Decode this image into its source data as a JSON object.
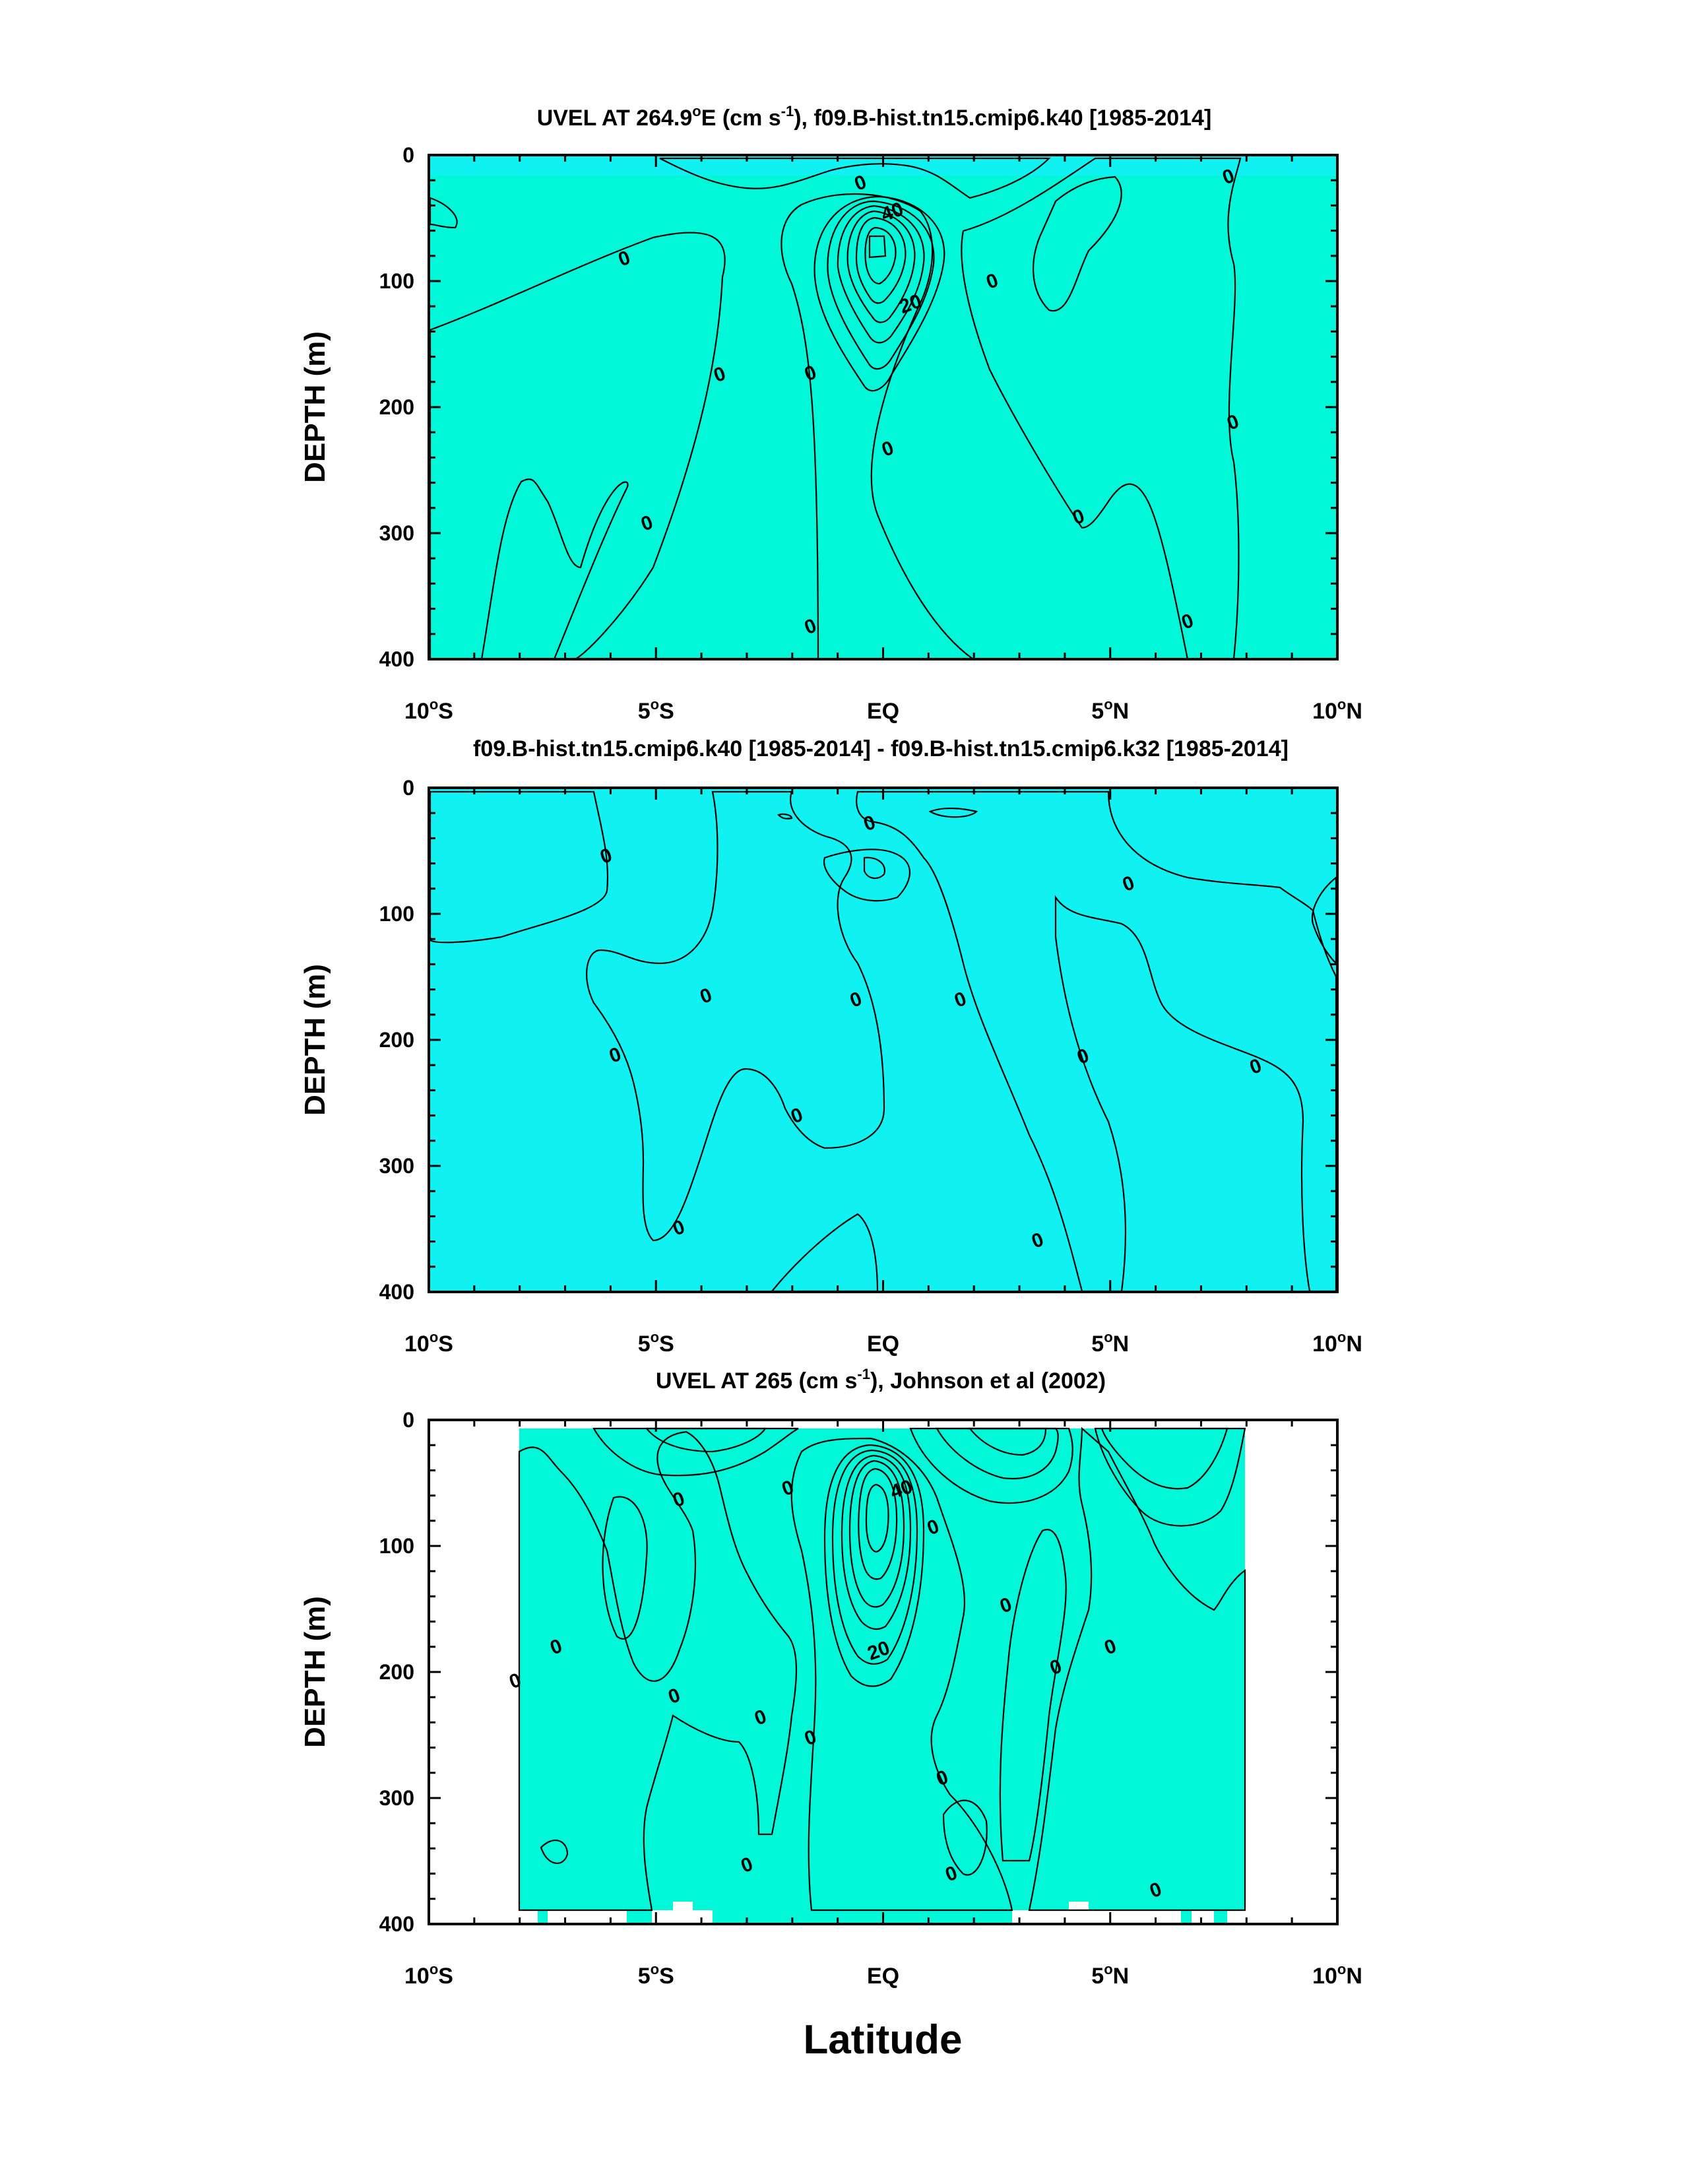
{
  "figure": {
    "x_axis_label": "Latitude"
  },
  "palette": {
    "cyan_blue": "#33e0f0",
    "deep_blue": "#13a8ea",
    "cyan": "#10f2f2",
    "aqua": "#00f8d8",
    "green": "#1df037",
    "lime": "#63ee0a",
    "yellow": "#fff23c",
    "gold": "#ffd52f",
    "light_orange": "#fcb048",
    "orange": "#f38b35",
    "dark_orange": "#ea6b27"
  },
  "chart_data": [
    {
      "type": "contour",
      "title": "UVEL AT 264.9°E (cm s⁻¹), f09.B-hist.tn15.cmip6.k40 [1985-2014]",
      "title_parts": {
        "pre": "UVEL AT 264.9",
        "deg": "o",
        "mid": "E (cm s",
        "sup": "-1",
        "post": "), f09.B-hist.tn15.cmip6.k40 [1985-2014]"
      },
      "ylabel": "DEPTH (m)",
      "xlabel": "Latitude",
      "xlim": [
        -10,
        10
      ],
      "ylim": [
        400,
        0
      ],
      "y_ticks": [
        0,
        100,
        200,
        300,
        400
      ],
      "x_ticks": [
        {
          "value": -10,
          "num": "10",
          "hemi": "S"
        },
        {
          "value": -5,
          "num": "5",
          "hemi": "S"
        },
        {
          "value": 0,
          "num": "EQ",
          "hemi": ""
        },
        {
          "value": 5,
          "num": "5",
          "hemi": "N"
        },
        {
          "value": 10,
          "num": "10",
          "hemi": "N"
        }
      ],
      "contour_interval": 10,
      "max_value_estimate": 70,
      "max_location": {
        "lat": 0,
        "depth": 75
      },
      "contour_labels": [
        {
          "text": "0",
          "lat": -0.5,
          "depth": 22
        },
        {
          "text": "40",
          "lat": 0.2,
          "depth": 45
        },
        {
          "text": "20",
          "lat": 0.6,
          "depth": 118
        },
        {
          "text": "0",
          "lat": -5.7,
          "depth": 82
        },
        {
          "text": "0",
          "lat": -3.6,
          "depth": 174
        },
        {
          "text": "0",
          "lat": -1.6,
          "depth": 173
        },
        {
          "text": "0",
          "lat": 0.1,
          "depth": 233
        },
        {
          "text": "0",
          "lat": 2.4,
          "depth": 100
        },
        {
          "text": "0",
          "lat": 4.3,
          "depth": 287
        },
        {
          "text": "0",
          "lat": 7.6,
          "depth": 17
        },
        {
          "text": "0",
          "lat": 7.7,
          "depth": 212
        },
        {
          "text": "0",
          "lat": 6.7,
          "depth": 370
        },
        {
          "text": "0",
          "lat": -5.2,
          "depth": 292
        },
        {
          "text": "0",
          "lat": -1.6,
          "depth": 374
        }
      ]
    },
    {
      "type": "contour",
      "title": "f09.B-hist.tn15.cmip6.k40 [1985-2014] - f09.B-hist.tn15.cmip6.k32 [1985-2014]",
      "title_parts": {
        "pre": "f09.B-hist.tn15.cmip6.k40 [1985-2014] - f09.B-hist.tn15.cmip6.k32 [1985-2014]"
      },
      "ylabel": "DEPTH (m)",
      "xlim": [
        -10,
        10
      ],
      "ylim": [
        400,
        0
      ],
      "y_ticks": [
        0,
        100,
        200,
        300,
        400
      ],
      "x_ticks": [
        {
          "value": -10,
          "num": "10",
          "hemi": "S"
        },
        {
          "value": -5,
          "num": "5",
          "hemi": "S"
        },
        {
          "value": 0,
          "num": "EQ",
          "hemi": ""
        },
        {
          "value": 5,
          "num": "5",
          "hemi": "N"
        },
        {
          "value": 10,
          "num": "10",
          "hemi": "N"
        }
      ],
      "contour_labels": [
        {
          "text": "0",
          "lat": -0.3,
          "depth": 28
        },
        {
          "text": "0",
          "lat": -6.1,
          "depth": 54
        },
        {
          "text": "0",
          "lat": 5.4,
          "depth": 76
        },
        {
          "text": "0",
          "lat": -3.9,
          "depth": 165
        },
        {
          "text": "0",
          "lat": -0.6,
          "depth": 168
        },
        {
          "text": "0",
          "lat": 1.7,
          "depth": 168
        },
        {
          "text": "0",
          "lat": -5.9,
          "depth": 212
        },
        {
          "text": "0",
          "lat": 4.4,
          "depth": 213
        },
        {
          "text": "0",
          "lat": 8.2,
          "depth": 221
        },
        {
          "text": "0",
          "lat": -1.9,
          "depth": 260
        },
        {
          "text": "0",
          "lat": -4.5,
          "depth": 349
        },
        {
          "text": "0",
          "lat": 3.4,
          "depth": 359
        }
      ]
    },
    {
      "type": "contour",
      "title": "UVEL AT 265 (cm s⁻¹), Johnson et al (2002)",
      "title_parts": {
        "pre": "UVEL AT 265 (cm s",
        "sup": "-1",
        "post": "), Johnson et al (2002)"
      },
      "ylabel": "DEPTH (m)",
      "xlim": [
        -10,
        10
      ],
      "ylim": [
        400,
        0
      ],
      "data_lat_range": [
        -8,
        8
      ],
      "y_ticks": [
        0,
        100,
        200,
        300,
        400
      ],
      "x_ticks": [
        {
          "value": -10,
          "num": "10",
          "hemi": "S"
        },
        {
          "value": -5,
          "num": "5",
          "hemi": "S"
        },
        {
          "value": 0,
          "num": "EQ",
          "hemi": ""
        },
        {
          "value": 5,
          "num": "5",
          "hemi": "N"
        },
        {
          "value": 10,
          "num": "10",
          "hemi": "N"
        }
      ],
      "contour_interval": 10,
      "max_value_estimate": 70,
      "max_location": {
        "lat": 0,
        "depth": 65
      },
      "contour_labels": [
        {
          "text": "40",
          "lat": 0.4,
          "depth": 55
        },
        {
          "text": "20",
          "lat": -0.1,
          "depth": 183
        },
        {
          "text": "0",
          "lat": -4.5,
          "depth": 63
        },
        {
          "text": "0",
          "lat": -2.1,
          "depth": 54
        },
        {
          "text": "0",
          "lat": 1.1,
          "depth": 85
        },
        {
          "text": "0",
          "lat": 2.7,
          "depth": 147
        },
        {
          "text": "0",
          "lat": 3.8,
          "depth": 196
        },
        {
          "text": "0",
          "lat": 5.0,
          "depth": 180
        },
        {
          "text": "0",
          "lat": -7.2,
          "depth": 180
        },
        {
          "text": "0",
          "lat": -8.1,
          "depth": 207
        },
        {
          "text": "0",
          "lat": -4.6,
          "depth": 219
        },
        {
          "text": "0",
          "lat": -2.7,
          "depth": 236
        },
        {
          "text": "0",
          "lat": -1.6,
          "depth": 252
        },
        {
          "text": "0",
          "lat": 1.3,
          "depth": 284
        },
        {
          "text": "0",
          "lat": -3.0,
          "depth": 353
        },
        {
          "text": "0",
          "lat": 1.5,
          "depth": 360
        },
        {
          "text": "0",
          "lat": 6.0,
          "depth": 373
        }
      ]
    }
  ]
}
